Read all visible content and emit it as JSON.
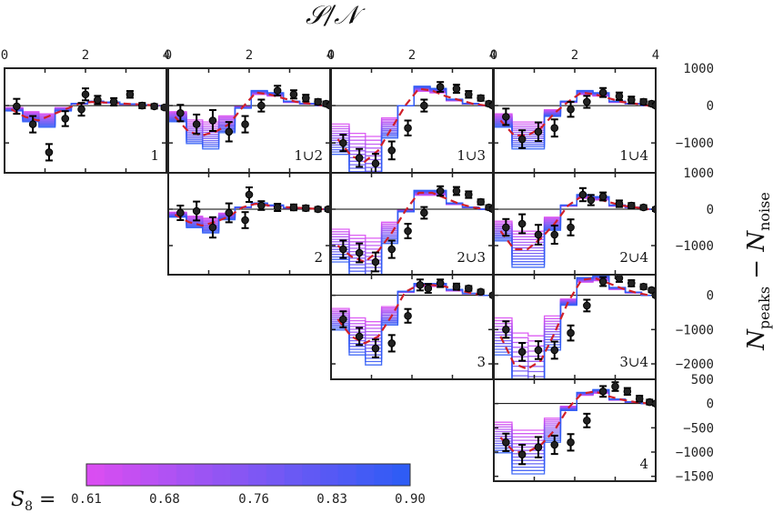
{
  "figure": {
    "top_label": "𝒮/𝒩",
    "right_label": "N",
    "right_label_sub1": "peaks",
    "right_label_mid": " − N",
    "right_label_sub2": "noise",
    "colorbar_label": "S",
    "colorbar_label_sub": "8",
    "colorbar_label_eq": " ="
  },
  "chart_data": {
    "type": "step-line-grid",
    "x_axis": {
      "label": "𝒮/𝒩",
      "range": [
        0,
        4
      ],
      "ticks": [
        "0",
        "2",
        "4"
      ]
    },
    "y_axis": {
      "label": "N_peaks − N_noise"
    },
    "colorbar": {
      "label": "S_8",
      "range": [
        0.61,
        0.9
      ],
      "ticks": [
        "0.61",
        "0.68",
        "0.76",
        "0.83",
        "0.90"
      ],
      "colors": [
        "#d94df2",
        "#a060f0",
        "#7a66f0",
        "#5a6ef2",
        "#2f5cf5"
      ]
    },
    "row_y_ticks": [
      {
        "values": [
          1000,
          0,
          -1000
        ],
        "labels": [
          "1000",
          "0",
          "−1000"
        ],
        "ylim": [
          -1800,
          1000
        ]
      },
      {
        "values": [
          1000,
          0,
          -1000
        ],
        "labels": [
          "1000",
          "0",
          "−1000"
        ],
        "ylim": [
          -1800,
          1000
        ]
      },
      {
        "values": [
          0,
          -1000,
          -2000
        ],
        "labels": [
          "0",
          "−1000",
          "−2000"
        ],
        "ylim": [
          -2450,
          600
        ]
      },
      {
        "values": [
          500,
          0,
          -500,
          -1000,
          -1500
        ],
        "labels": [
          "500",
          "0",
          "−500",
          "−1000",
          "−1500"
        ],
        "ylim": [
          -1600,
          500
        ]
      }
    ],
    "bins_x": [
      0.25,
      0.65,
      1.05,
      1.45,
      1.85,
      2.25,
      2.65,
      3.05,
      3.45,
      3.85
    ],
    "panels": [
      {
        "label": "1",
        "row": 0,
        "col": 0,
        "data_y": [
          -20,
          -500,
          -1250,
          -350,
          -100,
          300,
          150,
          100,
          300,
          0,
          -20,
          -50
        ],
        "data_x": [
          0.3,
          0.7,
          1.1,
          1.5,
          1.9,
          2.0,
          2.3,
          2.7,
          3.1,
          3.4,
          3.7,
          3.95
        ],
        "err": [
          200,
          220,
          220,
          200,
          170,
          160,
          110,
          100,
          90,
          70,
          60,
          50
        ],
        "fid": [
          -100,
          -300,
          -400,
          -250,
          -100,
          50,
          100,
          80,
          60,
          40,
          20,
          0
        ]
      },
      {
        "label": "1∪2",
        "row": 0,
        "col": 1,
        "data_y": [
          -200,
          -500,
          -400,
          -700,
          -500,
          0,
          400,
          300,
          200,
          100,
          50,
          0
        ],
        "data_x": [
          0.3,
          0.7,
          1.1,
          1.5,
          1.9,
          2.3,
          2.7,
          3.1,
          3.4,
          3.7,
          3.9,
          4.0
        ],
        "err": [
          220,
          260,
          280,
          260,
          220,
          160,
          130,
          110,
          90,
          70,
          60,
          50
        ],
        "fid": [
          -300,
          -700,
          -800,
          -700,
          -500,
          -50,
          350,
          300,
          200,
          100,
          50,
          0
        ]
      },
      {
        "label": "1∪3",
        "row": 0,
        "col": 2,
        "data_y": [
          -1000,
          -1400,
          -1550,
          -1200,
          -600,
          0,
          500,
          450,
          300,
          200,
          50,
          0
        ],
        "data_x": [
          0.3,
          0.7,
          1.1,
          1.5,
          1.9,
          2.3,
          2.7,
          3.1,
          3.4,
          3.7,
          3.9,
          4.0
        ],
        "err": [
          220,
          240,
          260,
          240,
          200,
          160,
          130,
          110,
          90,
          70,
          60,
          50
        ],
        "fid": [
          -900,
          -1350,
          -1500,
          -1200,
          -600,
          0,
          450,
          400,
          250,
          150,
          50,
          0
        ]
      },
      {
        "label": "1∪4",
        "row": 0,
        "col": 3,
        "data_y": [
          -300,
          -900,
          -700,
          -600,
          -100,
          100,
          350,
          250,
          150,
          100,
          50,
          0
        ],
        "data_x": [
          0.3,
          0.7,
          1.1,
          1.5,
          1.9,
          2.3,
          2.7,
          3.1,
          3.4,
          3.7,
          3.9,
          4.0
        ],
        "err": [
          220,
          240,
          250,
          230,
          200,
          160,
          120,
          100,
          90,
          70,
          60,
          50
        ],
        "fid": [
          -400,
          -800,
          -800,
          -600,
          -200,
          100,
          350,
          300,
          200,
          100,
          50,
          0
        ]
      },
      {
        "label": "2",
        "row": 1,
        "col": 1,
        "data_y": [
          -100,
          -50,
          -500,
          -100,
          -300,
          400,
          100,
          50,
          50,
          30,
          0,
          0
        ],
        "data_x": [
          0.3,
          0.7,
          1.1,
          1.5,
          1.9,
          2.0,
          2.3,
          2.7,
          3.1,
          3.4,
          3.7,
          3.95
        ],
        "err": [
          200,
          260,
          280,
          260,
          220,
          200,
          120,
          100,
          80,
          70,
          60,
          50
        ],
        "fid": [
          -150,
          -350,
          -450,
          -350,
          -200,
          50,
          150,
          100,
          60,
          40,
          20,
          0
        ]
      },
      {
        "label": "2∪3",
        "row": 1,
        "col": 2,
        "data_y": [
          -1100,
          -1200,
          -1450,
          -1100,
          -600,
          -100,
          500,
          500,
          400,
          200,
          50,
          0
        ],
        "data_x": [
          0.3,
          0.7,
          1.1,
          1.5,
          1.9,
          2.3,
          2.7,
          3.1,
          3.4,
          3.7,
          3.9,
          4.0
        ],
        "err": [
          240,
          260,
          260,
          240,
          200,
          160,
          130,
          110,
          90,
          70,
          60,
          50
        ],
        "fid": [
          -1000,
          -1300,
          -1450,
          -1150,
          -650,
          -50,
          450,
          450,
          300,
          150,
          50,
          0
        ]
      },
      {
        "label": "2∪4",
        "row": 1,
        "col": 3,
        "data_y": [
          -500,
          -400,
          -700,
          -700,
          -500,
          400,
          250,
          350,
          150,
          100,
          50,
          0
        ],
        "data_x": [
          0.3,
          0.7,
          1.1,
          1.5,
          1.9,
          2.2,
          2.4,
          2.7,
          3.1,
          3.4,
          3.7,
          4.0
        ],
        "err": [
          230,
          260,
          270,
          250,
          220,
          180,
          140,
          110,
          90,
          70,
          60,
          50
        ],
        "fid": [
          -600,
          -1100,
          -1100,
          -800,
          -400,
          100,
          350,
          300,
          200,
          100,
          50,
          0
        ]
      },
      {
        "label": "3",
        "row": 2,
        "col": 2,
        "data_y": [
          -700,
          -1200,
          -1550,
          -1400,
          -600,
          300,
          200,
          350,
          250,
          200,
          100,
          0
        ],
        "data_x": [
          0.3,
          0.7,
          1.1,
          1.5,
          1.9,
          2.2,
          2.4,
          2.7,
          3.1,
          3.4,
          3.7,
          4.0
        ],
        "err": [
          230,
          250,
          260,
          240,
          200,
          160,
          130,
          110,
          90,
          70,
          60,
          50
        ],
        "fid": [
          -700,
          -1200,
          -1400,
          -1200,
          -600,
          100,
          300,
          300,
          250,
          150,
          50,
          0
        ]
      },
      {
        "label": "3∪4",
        "row": 2,
        "col": 3,
        "data_y": [
          -1000,
          -1650,
          -1600,
          -1600,
          -1100,
          -300,
          400,
          500,
          350,
          250,
          150,
          0
        ],
        "data_x": [
          0.3,
          0.7,
          1.1,
          1.5,
          1.9,
          2.3,
          2.7,
          3.1,
          3.4,
          3.7,
          3.9,
          4.0
        ],
        "err": [
          240,
          260,
          260,
          250,
          220,
          170,
          130,
          110,
          90,
          70,
          60,
          50
        ],
        "fid": [
          -1200,
          -2000,
          -2150,
          -1900,
          -1100,
          -200,
          450,
          500,
          350,
          200,
          80,
          0
        ]
      },
      {
        "label": "4",
        "row": 3,
        "col": 3,
        "data_y": [
          -800,
          -1050,
          -900,
          -850,
          -800,
          -350,
          250,
          350,
          250,
          100,
          30,
          0
        ],
        "data_x": [
          0.3,
          0.7,
          1.1,
          1.5,
          1.9,
          2.3,
          2.7,
          3.0,
          3.3,
          3.6,
          3.85,
          4.0
        ],
        "err": [
          180,
          200,
          210,
          190,
          170,
          140,
          110,
          90,
          70,
          60,
          50,
          40
        ],
        "fid": [
          -700,
          -1000,
          -1000,
          -850,
          -550,
          -100,
          200,
          250,
          150,
          80,
          30,
          0
        ]
      }
    ]
  }
}
